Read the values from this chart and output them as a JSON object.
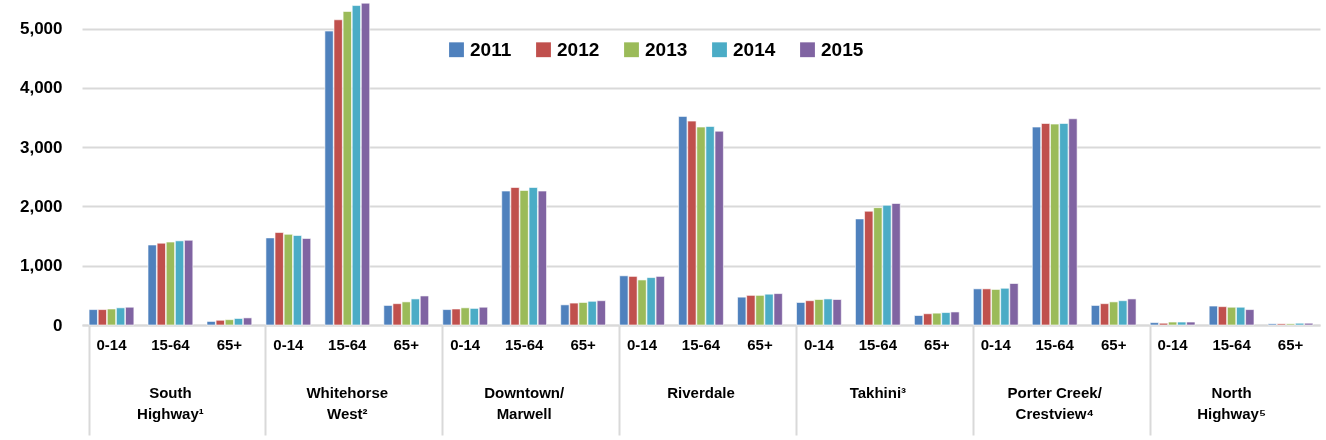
{
  "chart_data": {
    "type": "bar",
    "categories": [
      "0-14",
      "15-64",
      "65+",
      "0-14",
      "15-64",
      "65+",
      "0-14",
      "15-64",
      "65+",
      "0-14",
      "15-64",
      "65+",
      "0-14",
      "15-64",
      "65+",
      "0-14",
      "15-64",
      "65+",
      "0-14",
      "15-64",
      "65+"
    ],
    "annotations": [
      "South\nHighway¹",
      "Whitehorse\nWest²",
      "Downtown/\nMarwell",
      "Riverdale",
      "Takhini³",
      "Porter Creek/\nCrestview⁴",
      "North\nHighway⁵"
    ],
    "series": [
      {
        "name": "2011",
        "color": "#4f81bd",
        "values": [
          260,
          1350,
          60,
          1470,
          4960,
          330,
          260,
          2260,
          340,
          830,
          3520,
          470,
          380,
          1790,
          160,
          610,
          3340,
          330,
          40,
          320,
          20
        ]
      },
      {
        "name": "2012",
        "color": "#c0504d",
        "values": [
          260,
          1380,
          80,
          1560,
          5150,
          360,
          270,
          2320,
          370,
          820,
          3440,
          500,
          410,
          1920,
          190,
          610,
          3400,
          360,
          30,
          310,
          20
        ]
      },
      {
        "name": "2013",
        "color": "#9bbb59",
        "values": [
          270,
          1400,
          90,
          1530,
          5290,
          390,
          290,
          2270,
          380,
          760,
          3340,
          500,
          430,
          1980,
          200,
          600,
          3390,
          390,
          50,
          300,
          20
        ]
      },
      {
        "name": "2014",
        "color": "#4bacc6",
        "values": [
          290,
          1420,
          110,
          1510,
          5390,
          440,
          280,
          2320,
          400,
          800,
          3350,
          520,
          440,
          2020,
          210,
          620,
          3400,
          410,
          50,
          300,
          30
        ]
      },
      {
        "name": "2015",
        "color": "#8064a2",
        "values": [
          300,
          1430,
          120,
          1460,
          5430,
          490,
          300,
          2260,
          410,
          820,
          3270,
          530,
          430,
          2050,
          220,
          700,
          3480,
          440,
          50,
          260,
          30
        ]
      }
    ],
    "ylim": [
      0,
      5450
    ],
    "yticks": [
      {
        "value": 0,
        "label": "0"
      },
      {
        "value": 1000,
        "label": "1,000"
      },
      {
        "value": 2000,
        "label": "2,000"
      },
      {
        "value": 3000,
        "label": "3,000"
      },
      {
        "value": 4000,
        "label": "4,000"
      },
      {
        "value": 5000,
        "label": "5,000"
      }
    ],
    "grid": "y",
    "legend": "top"
  }
}
